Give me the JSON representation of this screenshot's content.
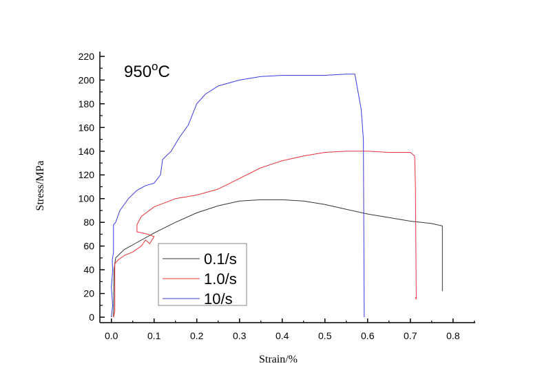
{
  "chart_data": {
    "type": "line",
    "title": "",
    "annotation": {
      "text": "950",
      "superscript": "o",
      "unit": "C"
    },
    "xlabel": "Strain/%",
    "ylabel": "Stress/MPa",
    "xlim": [
      -0.027,
      0.852
    ],
    "ylim": [
      -4.6,
      224
    ],
    "xticks": [
      0.0,
      0.1,
      0.2,
      0.3,
      0.4,
      0.5,
      0.6,
      0.7,
      0.8
    ],
    "xtick_labels": [
      "0.0",
      "0.1",
      "0.2",
      "0.3",
      "0.4",
      "0.5",
      "0.6",
      "0.7",
      "0.8"
    ],
    "yticks": [
      0,
      20,
      40,
      60,
      80,
      100,
      120,
      140,
      160,
      180,
      200,
      220
    ],
    "ytick_labels": [
      "0",
      "20",
      "40",
      "60",
      "80",
      "100",
      "120",
      "140",
      "160",
      "180",
      "200",
      "220"
    ],
    "grid": false,
    "legend_position": "lower-left",
    "series": [
      {
        "name": "0.1/s",
        "color": "#333333",
        "points": [
          [
            0.005,
            0
          ],
          [
            0.006,
            40
          ],
          [
            0.01,
            50
          ],
          [
            0.03,
            57
          ],
          [
            0.06,
            63
          ],
          [
            0.1,
            71
          ],
          [
            0.15,
            80
          ],
          [
            0.2,
            88
          ],
          [
            0.25,
            94
          ],
          [
            0.3,
            98
          ],
          [
            0.35,
            99
          ],
          [
            0.4,
            99
          ],
          [
            0.45,
            98
          ],
          [
            0.5,
            95
          ],
          [
            0.55,
            91
          ],
          [
            0.6,
            87
          ],
          [
            0.65,
            84
          ],
          [
            0.7,
            81
          ],
          [
            0.75,
            79
          ],
          [
            0.775,
            77
          ],
          [
            0.775,
            22
          ]
        ]
      },
      {
        "name": "1.0/s",
        "color": "#e8303a",
        "points": [
          [
            0.005,
            0
          ],
          [
            0.008,
            5
          ],
          [
            0.008,
            45
          ],
          [
            0.015,
            48
          ],
          [
            0.03,
            52
          ],
          [
            0.05,
            55
          ],
          [
            0.07,
            60
          ],
          [
            0.08,
            65
          ],
          [
            0.09,
            62
          ],
          [
            0.1,
            68
          ],
          [
            0.085,
            70
          ],
          [
            0.06,
            72
          ],
          [
            0.06,
            78
          ],
          [
            0.07,
            85
          ],
          [
            0.1,
            93
          ],
          [
            0.15,
            100
          ],
          [
            0.2,
            103
          ],
          [
            0.25,
            108
          ],
          [
            0.3,
            117
          ],
          [
            0.35,
            126
          ],
          [
            0.4,
            132
          ],
          [
            0.45,
            136
          ],
          [
            0.5,
            139
          ],
          [
            0.55,
            140
          ],
          [
            0.6,
            140
          ],
          [
            0.65,
            139
          ],
          [
            0.7,
            139
          ],
          [
            0.71,
            136
          ],
          [
            0.712,
            110
          ],
          [
            0.714,
            15
          ],
          [
            0.712,
            17
          ]
        ]
      },
      {
        "name": "10/s",
        "color": "#3a3ae0",
        "points": [
          [
            0.0,
            0
          ],
          [
            0.003,
            10
          ],
          [
            0.0,
            25
          ],
          [
            0.003,
            40
          ],
          [
            0.002,
            48
          ],
          [
            0.005,
            55
          ],
          [
            0.005,
            78
          ],
          [
            0.01,
            80
          ],
          [
            0.02,
            90
          ],
          [
            0.04,
            100
          ],
          [
            0.06,
            107
          ],
          [
            0.08,
            111
          ],
          [
            0.1,
            113
          ],
          [
            0.115,
            120
          ],
          [
            0.12,
            133
          ],
          [
            0.14,
            140
          ],
          [
            0.16,
            152
          ],
          [
            0.18,
            162
          ],
          [
            0.2,
            180
          ],
          [
            0.22,
            188
          ],
          [
            0.25,
            195
          ],
          [
            0.3,
            200
          ],
          [
            0.35,
            203
          ],
          [
            0.4,
            204
          ],
          [
            0.45,
            204
          ],
          [
            0.5,
            204
          ],
          [
            0.55,
            205
          ],
          [
            0.57,
            205
          ],
          [
            0.575,
            195
          ],
          [
            0.585,
            175
          ],
          [
            0.59,
            150
          ],
          [
            0.592,
            0
          ]
        ]
      }
    ]
  }
}
